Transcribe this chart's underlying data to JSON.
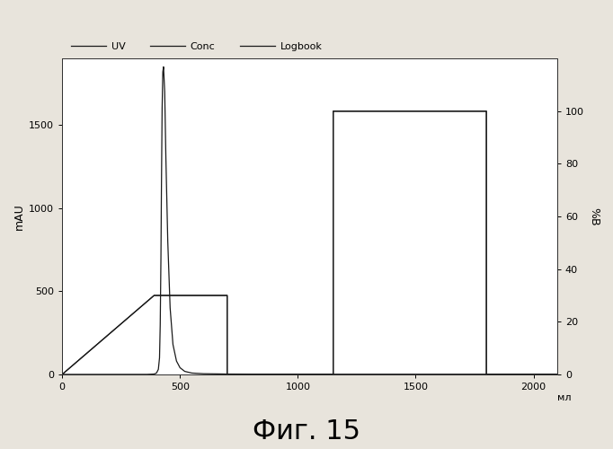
{
  "title": "Фиг. 15",
  "ylabel_left": "mAU",
  "ylabel_right": "%B",
  "xlabel_end": "мл",
  "xlim": [
    0,
    2100
  ],
  "ylim_left": [
    0,
    1900
  ],
  "ylim_right": [
    0,
    120
  ],
  "xticks": [
    0,
    500,
    1000,
    1500,
    2000
  ],
  "xtick_labels": [
    "0",
    "500",
    "1000",
    "1500",
    "2000"
  ],
  "yticks_left": [
    0,
    500,
    1000,
    1500
  ],
  "ytick_labels_left": [
    "0",
    "500",
    "1000",
    "1500"
  ],
  "yticks_right": [
    0,
    20,
    40,
    60,
    80,
    100
  ],
  "ytick_labels_right": [
    "0",
    "20",
    "40",
    "60",
    "80",
    "100"
  ],
  "bg_color": "#ffffff",
  "fig_bg": "#e8e4dc",
  "uv_x": [
    0,
    50,
    150,
    280,
    360,
    390,
    400,
    408,
    413,
    416,
    419,
    421,
    424,
    427,
    430,
    435,
    440,
    448,
    458,
    470,
    485,
    500,
    520,
    550,
    600,
    700,
    900,
    1200,
    1800,
    2100
  ],
  "uv_y": [
    0,
    0,
    0,
    0,
    0,
    2,
    8,
    30,
    100,
    300,
    700,
    1100,
    1600,
    1820,
    1850,
    1700,
    1300,
    800,
    400,
    180,
    80,
    40,
    18,
    8,
    4,
    2,
    1,
    1,
    1,
    1
  ],
  "conc_x": [
    0,
    390,
    700,
    700,
    1150,
    1150,
    1800,
    1800,
    2100
  ],
  "conc_y": [
    0,
    30,
    30,
    0,
    0,
    100,
    100,
    0,
    0
  ],
  "logbook_x": [
    0,
    390,
    700,
    700,
    1150,
    1150,
    1800,
    1800,
    2100
  ],
  "logbook_y": [
    0,
    30,
    30,
    0,
    0,
    100,
    100,
    0,
    0
  ],
  "legend_labels": [
    "UV",
    "Conc",
    "Logbook"
  ],
  "line_color": "#1a1a1a",
  "title_fontsize": 22
}
